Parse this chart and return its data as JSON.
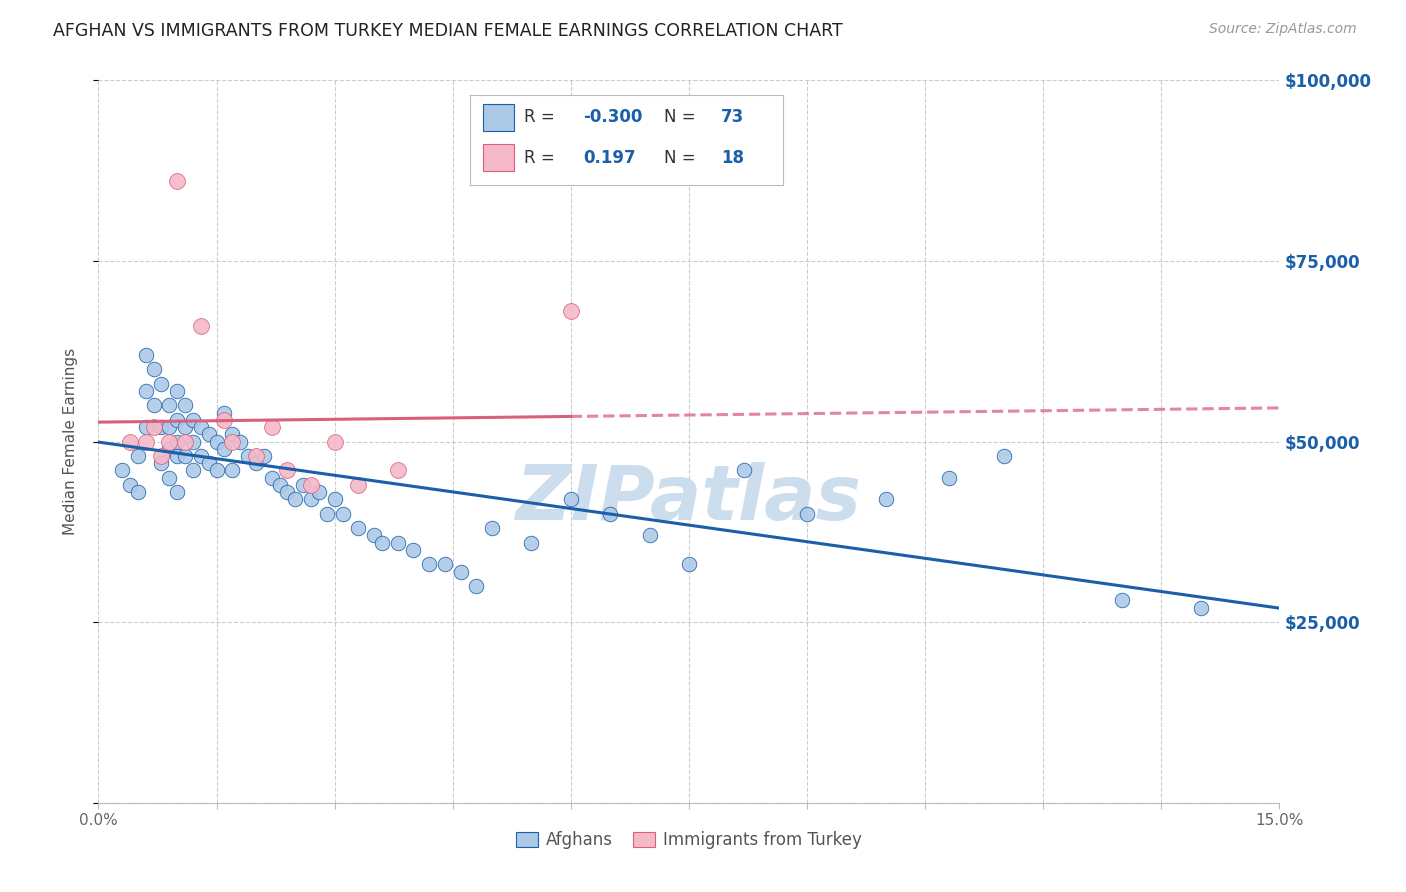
{
  "title": "AFGHAN VS IMMIGRANTS FROM TURKEY MEDIAN FEMALE EARNINGS CORRELATION CHART",
  "source": "Source: ZipAtlas.com",
  "ylabel": "Median Female Earnings",
  "xlim": [
    0.0,
    0.15
  ],
  "ylim": [
    0,
    100000
  ],
  "yticks": [
    0,
    25000,
    50000,
    75000,
    100000
  ],
  "ytick_labels": [
    "",
    "$25,000",
    "$50,000",
    "$75,000",
    "$100,000"
  ],
  "xticks": [
    0.0,
    0.015,
    0.03,
    0.045,
    0.06,
    0.075,
    0.09,
    0.105,
    0.12,
    0.135,
    0.15
  ],
  "xtick_labels": [
    "0.0%",
    "",
    "",
    "",
    "",
    "",
    "",
    "",
    "",
    "",
    "15.0%"
  ],
  "legend_r_afghan": "-0.300",
  "legend_n_afghan": "73",
  "legend_r_turkey": "0.197",
  "legend_n_turkey": "18",
  "color_afghan": "#adc9e8",
  "color_turkey": "#f5b8c8",
  "line_color_afghan": "#1a5fa8",
  "line_color_turkey": "#d9607a",
  "background_color": "#ffffff",
  "grid_color": "#cccccc",
  "watermark": "ZIPatlas",
  "watermark_color": "#ccdded",
  "title_fontsize": 12.5,
  "afghans_x": [
    0.003,
    0.004,
    0.005,
    0.005,
    0.006,
    0.006,
    0.006,
    0.007,
    0.007,
    0.008,
    0.008,
    0.008,
    0.009,
    0.009,
    0.009,
    0.009,
    0.01,
    0.01,
    0.01,
    0.01,
    0.01,
    0.011,
    0.011,
    0.011,
    0.012,
    0.012,
    0.012,
    0.013,
    0.013,
    0.014,
    0.014,
    0.015,
    0.015,
    0.016,
    0.016,
    0.017,
    0.017,
    0.018,
    0.019,
    0.02,
    0.021,
    0.022,
    0.023,
    0.024,
    0.025,
    0.026,
    0.027,
    0.028,
    0.029,
    0.03,
    0.031,
    0.033,
    0.035,
    0.036,
    0.038,
    0.04,
    0.042,
    0.044,
    0.046,
    0.048,
    0.05,
    0.055,
    0.06,
    0.065,
    0.07,
    0.075,
    0.082,
    0.09,
    0.1,
    0.108,
    0.115,
    0.13,
    0.14
  ],
  "afghans_y": [
    46000,
    44000,
    48000,
    43000,
    62000,
    57000,
    52000,
    60000,
    55000,
    58000,
    52000,
    47000,
    55000,
    52000,
    49000,
    45000,
    57000,
    53000,
    50000,
    48000,
    43000,
    55000,
    52000,
    48000,
    53000,
    50000,
    46000,
    52000,
    48000,
    51000,
    47000,
    50000,
    46000,
    54000,
    49000,
    51000,
    46000,
    50000,
    48000,
    47000,
    48000,
    45000,
    44000,
    43000,
    42000,
    44000,
    42000,
    43000,
    40000,
    42000,
    40000,
    38000,
    37000,
    36000,
    36000,
    35000,
    33000,
    33000,
    32000,
    30000,
    38000,
    36000,
    42000,
    40000,
    37000,
    33000,
    46000,
    40000,
    42000,
    45000,
    48000,
    28000,
    27000
  ],
  "turkey_x": [
    0.004,
    0.006,
    0.007,
    0.008,
    0.009,
    0.01,
    0.011,
    0.013,
    0.016,
    0.017,
    0.02,
    0.022,
    0.024,
    0.027,
    0.03,
    0.033,
    0.038,
    0.06
  ],
  "turkey_y": [
    50000,
    50000,
    52000,
    48000,
    50000,
    86000,
    50000,
    66000,
    53000,
    50000,
    48000,
    52000,
    46000,
    44000,
    50000,
    44000,
    46000,
    68000
  ]
}
